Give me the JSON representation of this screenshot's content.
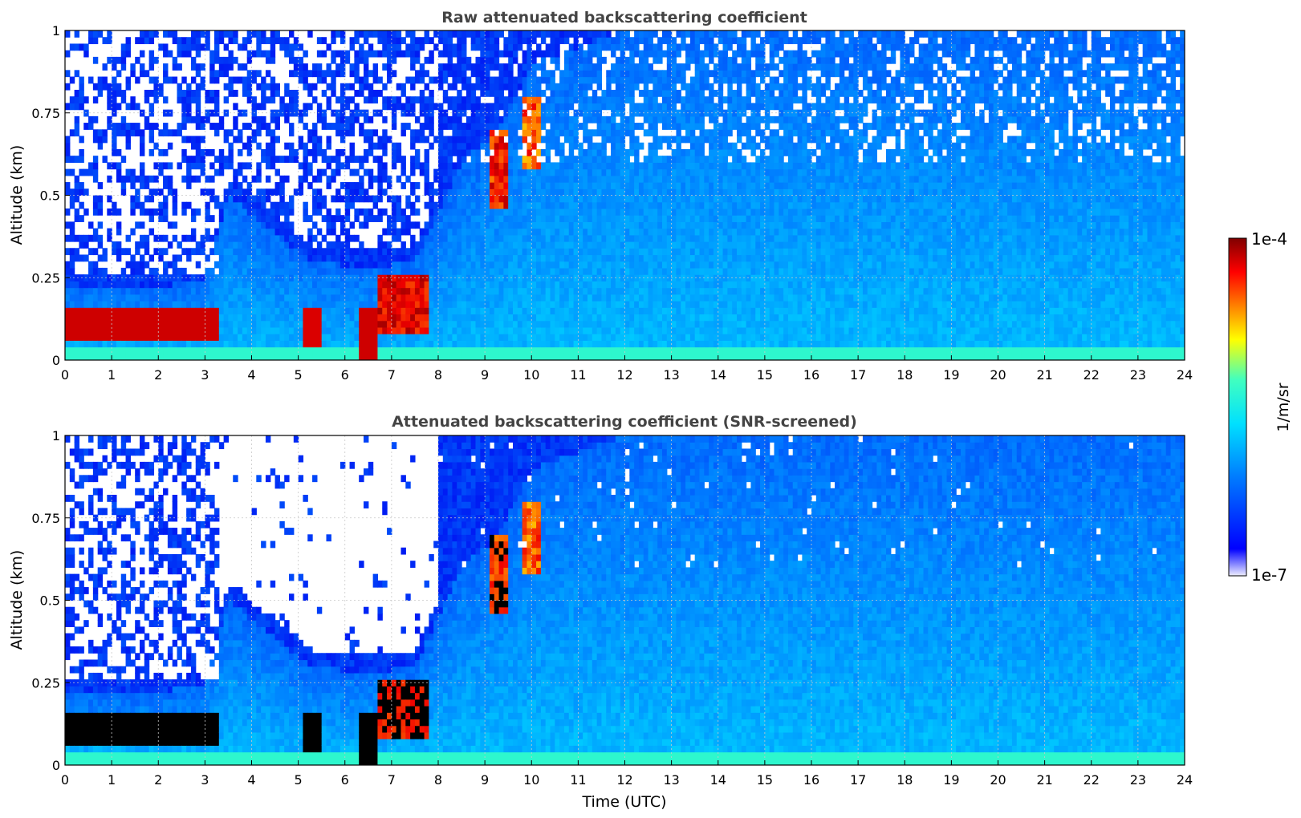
{
  "chart_data": [
    {
      "type": "heatmap",
      "title": "Raw attenuated backscattering coefficient",
      "xlabel": "",
      "ylabel": "Altitude (km)",
      "xlim": [
        0,
        24
      ],
      "ylim": [
        0,
        1
      ],
      "xticks": [
        "0",
        "1",
        "2",
        "3",
        "4",
        "5",
        "6",
        "7",
        "8",
        "9",
        "10",
        "11",
        "12",
        "13",
        "14",
        "15",
        "16",
        "17",
        "18",
        "19",
        "20",
        "21",
        "22",
        "23",
        "24"
      ],
      "yticks": [
        "0",
        "0.25",
        "0.5",
        "0.75",
        "1"
      ],
      "grid": true,
      "log_scale": true,
      "colorscale": "jet",
      "value_range": [
        1e-07,
        0.0001
      ],
      "notes_sampled_profile": {
        "time_hours": [
          0,
          1,
          2,
          3,
          3.5,
          5.3,
          6.5,
          7.5,
          8.5,
          9.3,
          10,
          12,
          16,
          20,
          24
        ],
        "boundary_layer_top_km": [
          0.22,
          0.22,
          0.22,
          0.25,
          0.5,
          0.3,
          0.28,
          0.3,
          0.6,
          0.7,
          0.9,
          1.0,
          1.0,
          1.0,
          1.0
        ],
        "cloud_layer_km": [
          [
            0.05,
            0.15
          ],
          [
            0.07,
            0.18
          ],
          [
            0.07,
            0.17
          ],
          [
            0.07,
            0.2
          ],
          null,
          [
            0.05,
            0.17
          ],
          [
            0.0,
            0.15
          ],
          [
            0.07,
            0.25
          ],
          null,
          [
            0.45,
            0.7
          ],
          [
            0.55,
            0.8
          ],
          null,
          null,
          null,
          null
        ]
      }
    },
    {
      "type": "heatmap",
      "title": "Attenuated backscattering coefficient (SNR-screened)",
      "xlabel": "Time (UTC)",
      "ylabel": "Altitude (km)",
      "xlim": [
        0,
        24
      ],
      "ylim": [
        0,
        1
      ],
      "xticks": [
        "0",
        "1",
        "2",
        "3",
        "4",
        "5",
        "6",
        "7",
        "8",
        "9",
        "10",
        "11",
        "12",
        "13",
        "14",
        "15",
        "16",
        "17",
        "18",
        "19",
        "20",
        "21",
        "22",
        "23",
        "24"
      ],
      "yticks": [
        "0",
        "0.25",
        "0.5",
        "0.75",
        "1"
      ],
      "grid": true,
      "log_scale": true,
      "colorscale": "jet",
      "value_range": [
        1e-07,
        0.0001
      ]
    }
  ],
  "colorbar": {
    "label": "1/m/sr",
    "max_label": "1e-4",
    "min_label": "1e-7",
    "colors": [
      "#eeeeff",
      "#0000ff",
      "#0080ff",
      "#00e0ff",
      "#40ffc0",
      "#ffff00",
      "#ff8000",
      "#ff0000",
      "#800000"
    ]
  }
}
